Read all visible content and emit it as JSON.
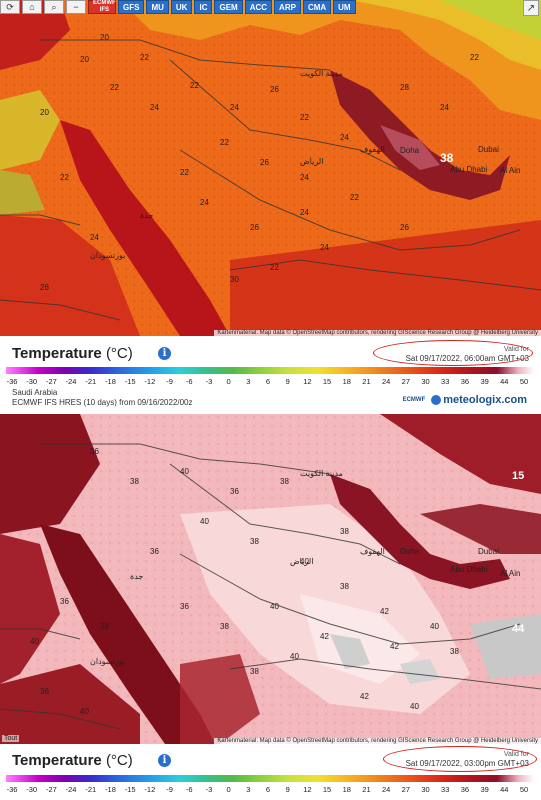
{
  "toolbar": {
    "refresh_icon": "refresh-icon",
    "home_icon": "home-icon",
    "zoom_icon": "zoom-icon",
    "minus_icon": "zoom-out-icon",
    "models": [
      "ECMWF IFS",
      "GFS",
      "MU",
      "UK",
      "IC",
      "GEM",
      "ACC",
      "ARP",
      "CMA",
      "UM"
    ],
    "share_icon": "share-icon"
  },
  "attribution": "Kartenmaterial: Map data © OpenStreetMap contributors, rendering GIScience Research Group @ Heidelberg University",
  "map_labels": {
    "doha": "Doha",
    "dubai": "Dubai",
    "abu_dhabi": "Abu Dhabi",
    "al_ain": "Al Ain",
    "riyadh": "الرياض",
    "kuwait": "مدينة الكويت",
    "jeddah": "جدة",
    "makkah": "مكة",
    "hofuf": "الهفوف",
    "port_sudan": "بورتسودان",
    "max_top": "38",
    "max_bottom_1": "15",
    "max_bottom_2": "44"
  },
  "top_values": [
    "20",
    "22",
    "24",
    "22",
    "24",
    "26",
    "22",
    "24",
    "22",
    "26",
    "24",
    "22",
    "20",
    "22",
    "24",
    "26",
    "24",
    "22",
    "26",
    "24",
    "22",
    "30",
    "20",
    "22",
    "24",
    "26",
    "28",
    "24",
    "22"
  ],
  "bottom_values": [
    "36",
    "38",
    "40",
    "36",
    "38",
    "40",
    "38",
    "36",
    "40",
    "38",
    "42",
    "40",
    "38",
    "36",
    "42",
    "40",
    "38",
    "36",
    "40",
    "38",
    "42",
    "40",
    "38",
    "36",
    "42",
    "40",
    "38",
    "40"
  ],
  "legend": {
    "title": "Temperature",
    "unit": "(°C)",
    "ticks": [
      "-36",
      "-30",
      "-27",
      "-24",
      "-21",
      "-18",
      "-15",
      "-12",
      "-9",
      "-6",
      "-3",
      "0",
      "3",
      "6",
      "9",
      "12",
      "15",
      "18",
      "21",
      "24",
      "27",
      "30",
      "33",
      "36",
      "39",
      "44",
      "50"
    ]
  },
  "top_valid": {
    "label": "Valid for",
    "date": "Sat 09/17/2022, 06:00am GMT+03"
  },
  "bottom_valid": {
    "label": "Valid for",
    "date": "Sat 09/17/2022, 03:00pm GMT+03"
  },
  "region": "Saudi Arabia",
  "model_line": "ECMWF IFS HRES (10 days) from 09/16/2022/00z",
  "brand": {
    "ecmwf": "ECMWF",
    "name": "meteologix.com"
  },
  "corner_logo": "Tout"
}
